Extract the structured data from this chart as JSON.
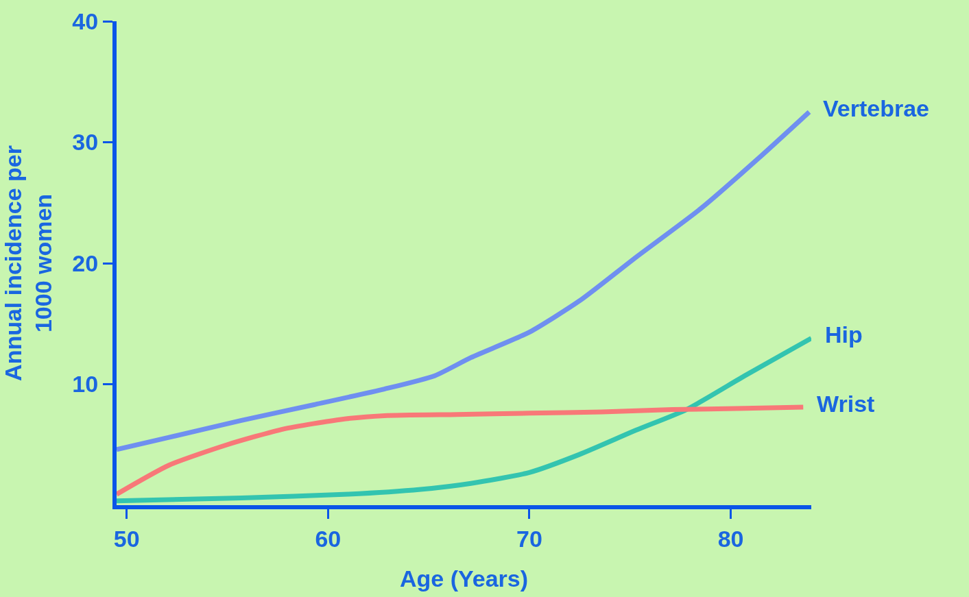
{
  "chart_data": {
    "type": "line",
    "xlabel": "Age (Years)",
    "ylabel": "Annual incidence per\n1000 women",
    "xlim": [
      49.5,
      84
    ],
    "xticks": [
      50,
      60,
      70,
      80
    ],
    "ylim": [
      0,
      40
    ],
    "yticks": [
      10,
      20,
      30,
      40
    ],
    "grid": false,
    "legend": false,
    "line_style": "solid",
    "marker": "none",
    "series": [
      {
        "name": "Vertebrae",
        "color": "#6f8ff0",
        "x": [
          49.5,
          52.1,
          55.7,
          59.3,
          62.8,
          65.3,
          67.1,
          70,
          72.5,
          75.3,
          78.5,
          81.4,
          83.9
        ],
        "values": [
          4.6,
          5.6,
          7.0,
          8.3,
          9.6,
          10.7,
          12.2,
          14.3,
          16.9,
          20.5,
          24.5,
          28.7,
          32.5
        ]
      },
      {
        "name": "Hip",
        "color": "#33c4b0",
        "x": [
          49.5,
          55.7,
          61,
          64.6,
          67.1,
          70,
          72.5,
          75.3,
          77.8,
          80.7,
          84
        ],
        "values": [
          0.35,
          0.6,
          0.9,
          1.3,
          1.8,
          2.7,
          4.2,
          6.2,
          7.9,
          10.7,
          13.8
        ]
      },
      {
        "name": "Wrist",
        "color": "#f87878",
        "x": [
          49.5,
          52.1,
          55,
          57.8,
          60.7,
          62.8,
          66.4,
          70,
          73.6,
          77.1,
          80.7,
          83.6
        ],
        "values": [
          0.9,
          3.3,
          5.0,
          6.3,
          7.1,
          7.4,
          7.5,
          7.6,
          7.7,
          7.9,
          8.0,
          8.1
        ]
      }
    ]
  }
}
